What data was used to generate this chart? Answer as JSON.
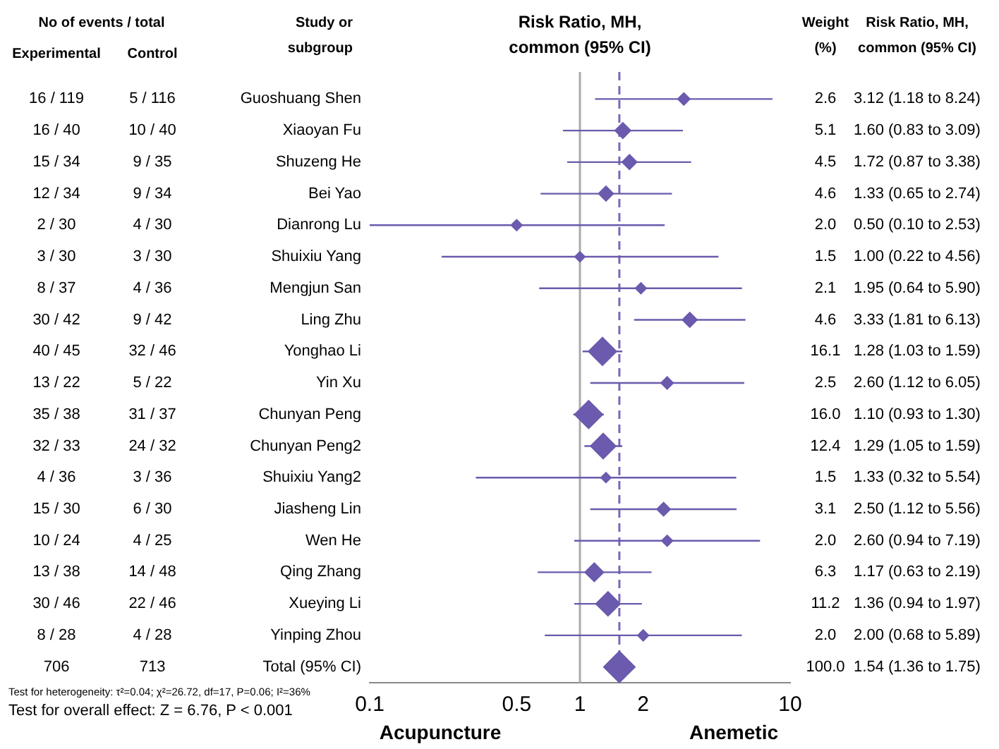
{
  "chart_data": {
    "type": "scatter",
    "orientation": "horizontal",
    "title": "Risk Ratio, MH, common (95% CI)",
    "categories": [
      "Guoshuang Shen",
      "Xiaoyan Fu",
      "Shuzeng He",
      "Bei Yao",
      "Dianrong Lu",
      "Shuixiu Yang",
      "Mengjun San",
      "Ling Zhu",
      "Yonghao Li",
      "Yin Xu",
      "Chunyan Peng",
      "Chunyan Peng2",
      "Shuixiu Yang2",
      "Jiasheng Lin",
      "Wen He",
      "Qing Zhang",
      "Xueying Li",
      "Yinping Zhou",
      "Total (95% CI)"
    ],
    "values": [
      3.12,
      1.6,
      1.72,
      1.33,
      0.5,
      1.0,
      1.95,
      3.33,
      1.28,
      2.6,
      1.1,
      1.29,
      1.33,
      2.5,
      2.6,
      1.17,
      1.36,
      2.0,
      1.54
    ],
    "errors": [
      [
        1.18,
        8.24
      ],
      [
        0.83,
        3.09
      ],
      [
        0.87,
        3.38
      ],
      [
        0.65,
        2.74
      ],
      [
        0.1,
        2.53
      ],
      [
        0.22,
        4.56
      ],
      [
        0.64,
        5.9
      ],
      [
        1.81,
        6.13
      ],
      [
        1.03,
        1.59
      ],
      [
        1.12,
        6.05
      ],
      [
        0.93,
        1.3
      ],
      [
        1.05,
        1.59
      ],
      [
        0.32,
        5.54
      ],
      [
        1.12,
        5.56
      ],
      [
        0.94,
        7.19
      ],
      [
        0.63,
        2.19
      ],
      [
        0.94,
        1.97
      ],
      [
        0.68,
        5.89
      ],
      [
        1.36,
        1.75
      ]
    ],
    "value_labels": [
      "3.12 (1.18 to 8.24)",
      "1.60 (0.83 to 3.09)",
      "1.72 (0.87 to 3.38)",
      "1.33 (0.65 to 2.74)",
      "0.50 (0.10 to 2.53)",
      "1.00 (0.22 to 4.56)",
      "1.95 (0.64 to 5.90)",
      "3.33 (1.81 to 6.13)",
      "1.28 (1.03 to 1.59)",
      "2.60 (1.12 to 6.05)",
      "1.10 (0.93 to 1.30)",
      "1.29 (1.05 to 1.59)",
      "1.33 (0.32 to 5.54)",
      "2.50 (1.12 to 5.56)",
      "2.60 (0.94 to 7.19)",
      "1.17 (0.63 to 2.19)",
      "1.36 (0.94 to 1.97)",
      "2.00 (0.68 to 5.89)",
      "1.54 (1.36 to 1.75)"
    ],
    "sizes": [
      0.15,
      0.25,
      0.22,
      0.22,
      0.12,
      0.1,
      0.12,
      0.22,
      0.8,
      0.15,
      0.8,
      0.65,
      0.1,
      0.18,
      0.12,
      0.35,
      0.6,
      0.12,
      1
    ],
    "color": "#6b5aad",
    "marker": "diamond",
    "log": "x",
    "xlim": [
      0.1,
      10
    ],
    "xticks": [
      0.1,
      0.5,
      1,
      2,
      10
    ],
    "grid": false,
    "legend": false,
    "ref_lines": [
      {
        "axis": "x",
        "value": 1,
        "color": "#aaaaaa",
        "line_style": "solid"
      },
      {
        "axis": "x",
        "value": 1.54,
        "color": "#7a68b8",
        "line_style": "dashed"
      }
    ],
    "annotations": [
      "Study or subgroup",
      "No of events / total",
      "Experimental",
      "Control",
      "Weight (%)",
      "Risk Ratio, MH, common (95% CI)",
      "16 / 119",
      "5 / 116",
      "2.6",
      "16 / 40",
      "10 / 40",
      "5.1",
      "15 / 34",
      "9 / 35",
      "4.5",
      "12 / 34",
      "9 / 34",
      "4.6",
      "2 / 30",
      "4 / 30",
      "2.0",
      "3 / 30",
      "3 / 30",
      "1.5",
      "8 / 37",
      "4 / 36",
      "2.1",
      "30 / 42",
      "9 / 42",
      "4.6",
      "40 / 45",
      "32 / 46",
      "16.1",
      "13 / 22",
      "5 / 22",
      "2.5",
      "35 / 38",
      "31 / 37",
      "16.0",
      "32 / 33",
      "24 / 32",
      "12.4",
      "4 / 36",
      "3 / 36",
      "1.5",
      "15 / 30",
      "6 / 30",
      "3.1",
      "10 / 24",
      "4 / 25",
      "2.0",
      "13 / 38",
      "14 / 48",
      "6.3",
      "30 / 46",
      "22 / 46",
      "11.2",
      "8 / 28",
      "4 / 28",
      "2.0",
      "706",
      "713",
      "100.0",
      "Test for heterogeneity: τ²=0.04; χ²=26.72, df=17, P=0.06; I²=36%",
      "Test for overall effect: Z = 6.76, P < 0.001",
      "Acupuncture",
      "Anemetic"
    ]
  }
}
